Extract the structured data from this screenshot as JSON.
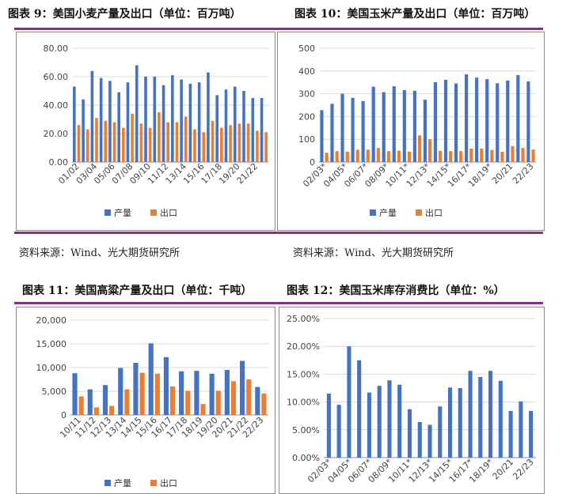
{
  "titles": {
    "fig9": "图表 9：美国小麦产量及出口（单位：百万吨）",
    "fig10": "图表 10：美国玉米产量及出口（单位：百万吨）",
    "fig11": "图表 11：美国高粱产量及出口（单位：千吨）",
    "fig12": "图表 12：美国玉米库存消费比（单位：%）"
  },
  "sources": {
    "left": "资料来源：Wind、光大期货研究所",
    "right": "资料来源：Wind、光大期货研究所"
  },
  "colors": {
    "production": "#4472c4",
    "export": "#ed7d31",
    "rule": "#8a2d8a",
    "grid": "#d9d9d9",
    "axis_text": "#444444"
  },
  "chart_data": [
    {
      "id": "fig9",
      "type": "bar",
      "categories": [
        "01/02",
        "02/03",
        "03/04",
        "04/05",
        "05/06",
        "06/07",
        "07/08",
        "08/09",
        "09/10",
        "10/11",
        "11/12",
        "12/13",
        "13/14",
        "14/15",
        "15/16",
        "16/17",
        "17/18",
        "18/19",
        "19/20",
        "20/21",
        "21/22",
        "22/23"
      ],
      "tick_labels": [
        "01/02",
        "03/04",
        "05/06",
        "07/08",
        "09/10",
        "11/12",
        "13/14",
        "15/16",
        "17/18",
        "19/20",
        "21/22"
      ],
      "series": [
        {
          "name": "产量",
          "values": [
            53,
            44,
            64,
            59,
            57,
            49,
            56,
            68,
            60,
            60,
            54,
            61,
            58,
            55,
            56,
            63,
            47,
            51,
            53,
            50,
            45,
            45
          ]
        },
        {
          "name": "出口",
          "values": [
            26,
            23,
            31,
            29,
            28,
            24,
            34,
            27,
            24,
            35,
            28,
            28,
            32,
            23,
            21,
            29,
            24,
            26,
            27,
            27,
            22,
            21
          ]
        }
      ],
      "y_ticks": [
        "0.00",
        "20.00",
        "40.00",
        "60.00",
        "80.00"
      ],
      "ylim": [
        0,
        80
      ],
      "grid": true,
      "legend": "bottom"
    },
    {
      "id": "fig10",
      "type": "bar",
      "categories": [
        "02/03*",
        "03/04*",
        "04/05*",
        "05/06*",
        "06/07*",
        "07/08*",
        "08/09*",
        "09/10*",
        "10/11*",
        "11/12*",
        "12/13*",
        "13/14*",
        "14/15*",
        "15/16*",
        "16/17*",
        "17/18*",
        "18/19*",
        "19/20*",
        "20/21",
        "21/22",
        "22/23"
      ],
      "tick_labels": [
        "02/03*",
        "04/05*",
        "06/07*",
        "08/09*",
        "10/11*",
        "12/13*",
        "14/15*",
        "16/17*",
        "18/19*",
        "20/21",
        "22/23"
      ],
      "series": [
        {
          "name": "产量",
          "values": [
            228,
            256,
            300,
            282,
            268,
            331,
            307,
            333,
            316,
            313,
            274,
            351,
            361,
            345,
            385,
            371,
            364,
            346,
            358,
            382,
            354
          ]
        },
        {
          "name": "出口",
          "values": [
            41,
            48,
            46,
            54,
            54,
            62,
            48,
            50,
            46,
            117,
            100,
            49,
            48,
            48,
            59,
            59,
            53,
            45,
            70,
            62,
            55
          ]
        }
      ],
      "y_ticks": [
        "0",
        "100",
        "200",
        "300",
        "400",
        "500"
      ],
      "ylim": [
        0,
        500
      ],
      "grid": true,
      "legend": "bottom"
    },
    {
      "id": "fig11",
      "type": "bar",
      "categories": [
        "10/11",
        "11/12",
        "12/13",
        "13/14",
        "14/15",
        "15/16",
        "16/17",
        "17/18",
        "18/19",
        "19/20",
        "20/21",
        "21/22",
        "22/23"
      ],
      "tick_labels": [
        "10/11",
        "11/12",
        "12/13",
        "13/14",
        "14/15",
        "15/16",
        "16/17",
        "17/18",
        "18/19",
        "19/20",
        "20/21",
        "21/22",
        "22/23"
      ],
      "series": [
        {
          "name": "产量",
          "values": [
            8800,
            5400,
            6300,
            9900,
            11000,
            15100,
            12200,
            9200,
            9300,
            8700,
            9500,
            11400,
            5900
          ]
        },
        {
          "name": "出口",
          "values": [
            3900,
            1600,
            1900,
            5400,
            8900,
            8700,
            6000,
            5100,
            2300,
            5100,
            7100,
            7500,
            4500
          ]
        }
      ],
      "y_ticks": [
        "0",
        "5,000",
        "10,000",
        "15,000",
        "20,000"
      ],
      "ylim": [
        0,
        20000
      ],
      "grid": true,
      "legend": "bottom"
    },
    {
      "id": "fig12",
      "type": "bar",
      "categories": [
        "02/03*",
        "03/04*",
        "04/05*",
        "05/06*",
        "06/07*",
        "07/08*",
        "08/09*",
        "09/10*",
        "10/11*",
        "11/12*",
        "12/13*",
        "13/14*",
        "14/15*",
        "15/16*",
        "16/17*",
        "17/18*",
        "18/19*",
        "19/20*",
        "20/21",
        "21/22",
        "22/23"
      ],
      "tick_labels": [
        "02/03*",
        "04/05*",
        "06/07*",
        "08/09*",
        "10/11*",
        "12/13*",
        "14/15*",
        "16/17*",
        "18/19*",
        "20/21",
        "22/23"
      ],
      "series": [
        {
          "values": [
            11.5,
            9.5,
            20.0,
            17.5,
            11.7,
            12.9,
            13.9,
            13.1,
            8.7,
            6.4,
            5.9,
            9.2,
            12.6,
            12.5,
            15.6,
            14.5,
            15.6,
            13.8,
            8.4,
            10.1,
            8.4
          ]
        }
      ],
      "y_ticks": [
        "0.00%",
        "5.00%",
        "10.00%",
        "15.00%",
        "20.00%",
        "25.00%"
      ],
      "ylim": [
        0,
        25
      ],
      "grid": true
    }
  ]
}
